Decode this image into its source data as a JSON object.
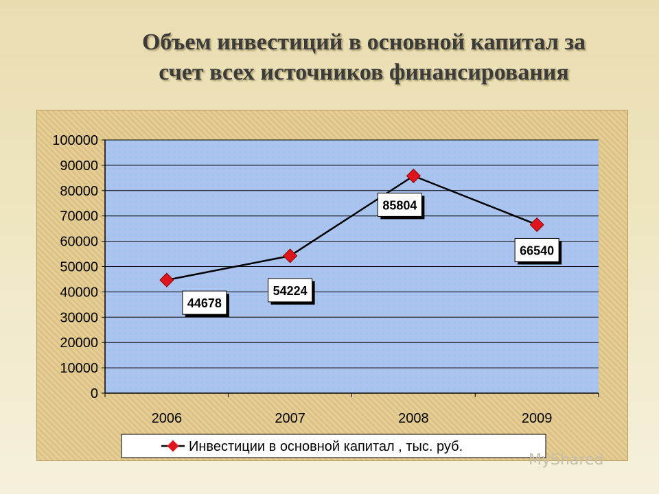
{
  "title_line1": "Объем инвестиций в основной капитал за",
  "title_line2": "счет всех источников финансирования",
  "watermark": "MyShared",
  "colors": {
    "line": "#000000",
    "marker": "#e0141c",
    "plot_bg": "#a9c4ef"
  },
  "chart_data": {
    "type": "line",
    "categories": [
      "2006",
      "2007",
      "2008",
      "2009"
    ],
    "series": [
      {
        "name": "Инвестиции в основной капитал , тыс. руб.",
        "values": [
          44678,
          54224,
          85804,
          66540
        ]
      }
    ],
    "ylim": [
      0,
      100000
    ],
    "yticks": [
      0,
      10000,
      20000,
      30000,
      40000,
      50000,
      60000,
      70000,
      80000,
      90000,
      100000
    ],
    "data_labels": [
      "44678",
      "54224",
      "85804",
      "66540"
    ],
    "grid": true,
    "legend": "bottom"
  }
}
